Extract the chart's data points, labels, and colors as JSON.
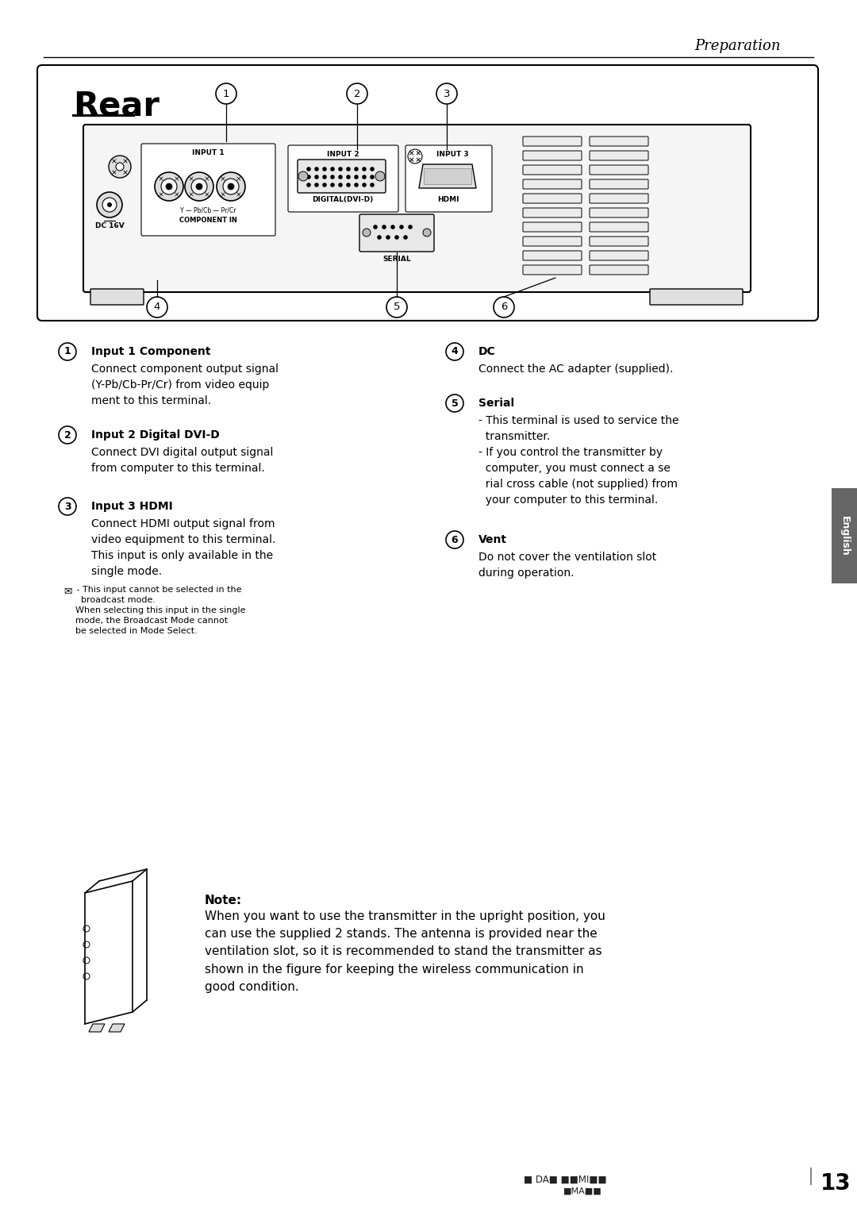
{
  "bg_color": "#ffffff",
  "page_number": "13",
  "header_text": "Preparation",
  "item1_title": "Input 1 Component",
  "item1_body": "Connect component output signal\n(Y-Pb/Cb-Pr/Cr) from video equip\nment to this terminal.",
  "item2_title": "Input 2 Digital DVI-D",
  "item2_body": "Connect DVI digital output signal\nfrom computer to this terminal.",
  "item3_title": "Input 3 HDMI",
  "item3_body": "Connect HDMI output signal from\nvideo equipment to this terminal.\nThis input is only available in the\nsingle mode.",
  "item3_note1": " — This input cannot be selected in the",
  "item3_note2": "   broadcast mode.",
  "item3_note3": "   When selecting this input in the single",
  "item3_note4": "   mode, the Broadcast Mode cannot",
  "item3_note5": "   be selected in Mode Select.",
  "item4_title": "DC",
  "item4_body": "Connect the AC adapter (supplied).",
  "item5_title": "Serial",
  "item5_body": "- This terminal is used to service the\n  transmitter.\n- If you control the transmitter by\n  computer, you must connect a se\n  rial cross cable (not supplied) from\n  your computer to this terminal.",
  "item6_title": "Vent",
  "item6_body": "Do not cover the ventilation slot\nduring operation.",
  "note_title": "Note:",
  "note_body": "When you want to use the transmitter in the upright position, you\ncan use the supplied 2 stands. The antenna is provided near the\nventilation slot, so it is recommended to stand the transmitter as\nshown in the figure for keeping the wireless communication in\ngood condition."
}
